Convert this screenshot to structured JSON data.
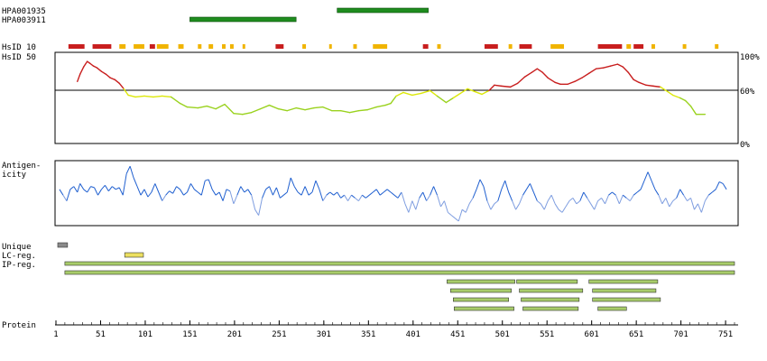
{
  "antibodies": [
    {
      "name": "HPA001935",
      "start": 316,
      "end": 418
    },
    {
      "name": "HPA003911",
      "start": 151,
      "end": 270
    }
  ],
  "rows": {
    "hsid10_label": "HsID 10",
    "hsid50_label": "HsID 50",
    "antigenicity_label_line1": "Antigen-",
    "antigenicity_label_line2": "icity",
    "unique_label": "Unique",
    "lc_label": "LC-reg.",
    "ip_label": "IP-reg.",
    "protein_label": "Protein"
  },
  "colors": {
    "antibody_bar": "#1e8c1e",
    "hsid_high": "#c81e1e",
    "hsid_mid": "#f0b400",
    "hsid_low": "#9ad21e",
    "antigenicity_line": "#2060d0",
    "unique_bar": "#8a8a8a",
    "lc_bar": "#ece060",
    "region_bar": "#a8cc6a"
  },
  "chart_data": {
    "type": "line",
    "x_axis": {
      "range": [
        1,
        761
      ],
      "tick_labels": [
        "1",
        "51",
        "101",
        "151",
        "201",
        "251",
        "301",
        "351",
        "401",
        "451",
        "501",
        "551",
        "601",
        "651",
        "701",
        "751"
      ]
    },
    "hsid10_track": {
      "segments": [
        {
          "start": 15,
          "end": 33,
          "level": "high"
        },
        {
          "start": 42,
          "end": 63,
          "level": "high"
        },
        {
          "start": 72,
          "end": 79,
          "level": "mid"
        },
        {
          "start": 88,
          "end": 100,
          "level": "mid"
        },
        {
          "start": 106,
          "end": 112,
          "level": "high"
        },
        {
          "start": 114,
          "end": 127,
          "level": "mid"
        },
        {
          "start": 138,
          "end": 144,
          "level": "mid"
        },
        {
          "start": 160,
          "end": 164,
          "level": "mid"
        },
        {
          "start": 172,
          "end": 177,
          "level": "mid"
        },
        {
          "start": 187,
          "end": 191,
          "level": "mid"
        },
        {
          "start": 196,
          "end": 200,
          "level": "mid"
        },
        {
          "start": 210,
          "end": 213,
          "level": "mid"
        },
        {
          "start": 247,
          "end": 256,
          "level": "high"
        },
        {
          "start": 277,
          "end": 281,
          "level": "mid"
        },
        {
          "start": 307,
          "end": 310,
          "level": "mid"
        },
        {
          "start": 334,
          "end": 338,
          "level": "mid"
        },
        {
          "start": 356,
          "end": 372,
          "level": "mid"
        },
        {
          "start": 412,
          "end": 418,
          "level": "high"
        },
        {
          "start": 428,
          "end": 432,
          "level": "mid"
        },
        {
          "start": 481,
          "end": 496,
          "level": "high"
        },
        {
          "start": 508,
          "end": 512,
          "level": "mid"
        },
        {
          "start": 520,
          "end": 534,
          "level": "high"
        },
        {
          "start": 555,
          "end": 570,
          "level": "mid"
        },
        {
          "start": 608,
          "end": 635,
          "level": "high"
        },
        {
          "start": 640,
          "end": 645,
          "level": "mid"
        },
        {
          "start": 648,
          "end": 659,
          "level": "high"
        },
        {
          "start": 668,
          "end": 672,
          "level": "mid"
        },
        {
          "start": 703,
          "end": 707,
          "level": "mid"
        },
        {
          "start": 739,
          "end": 743,
          "level": "mid"
        }
      ]
    },
    "hsid50": {
      "y_tick_labels": [
        "100%",
        "60%",
        "0%"
      ],
      "threshold": 60,
      "points": [
        [
          25,
          68
        ],
        [
          28,
          76
        ],
        [
          32,
          84
        ],
        [
          36,
          90
        ],
        [
          39,
          88
        ],
        [
          43,
          85
        ],
        [
          47,
          83
        ],
        [
          52,
          79
        ],
        [
          57,
          76
        ],
        [
          62,
          72
        ],
        [
          67,
          70
        ],
        [
          72,
          66
        ],
        [
          77,
          60
        ],
        [
          82,
          53
        ],
        [
          90,
          51
        ],
        [
          100,
          52
        ],
        [
          110,
          51
        ],
        [
          120,
          52
        ],
        [
          130,
          51
        ],
        [
          140,
          44
        ],
        [
          148,
          40
        ],
        [
          160,
          39
        ],
        [
          170,
          41
        ],
        [
          180,
          38
        ],
        [
          190,
          43
        ],
        [
          200,
          33
        ],
        [
          210,
          32
        ],
        [
          220,
          34
        ],
        [
          230,
          38
        ],
        [
          240,
          42
        ],
        [
          250,
          38
        ],
        [
          260,
          36
        ],
        [
          270,
          39
        ],
        [
          280,
          37
        ],
        [
          290,
          39
        ],
        [
          300,
          40
        ],
        [
          310,
          36
        ],
        [
          320,
          36
        ],
        [
          330,
          34
        ],
        [
          340,
          36
        ],
        [
          350,
          37
        ],
        [
          360,
          40
        ],
        [
          370,
          42
        ],
        [
          376,
          44
        ],
        [
          382,
          52
        ],
        [
          390,
          56
        ],
        [
          400,
          53
        ],
        [
          410,
          55
        ],
        [
          420,
          58
        ],
        [
          428,
          52
        ],
        [
          438,
          45
        ],
        [
          446,
          50
        ],
        [
          454,
          55
        ],
        [
          462,
          60
        ],
        [
          470,
          57
        ],
        [
          478,
          54
        ],
        [
          486,
          58
        ],
        [
          492,
          64
        ],
        [
          500,
          63
        ],
        [
          510,
          62
        ],
        [
          518,
          66
        ],
        [
          526,
          73
        ],
        [
          534,
          78
        ],
        [
          540,
          82
        ],
        [
          546,
          78
        ],
        [
          552,
          72
        ],
        [
          560,
          67
        ],
        [
          566,
          65
        ],
        [
          574,
          65
        ],
        [
          582,
          68
        ],
        [
          590,
          72
        ],
        [
          598,
          77
        ],
        [
          606,
          82
        ],
        [
          614,
          83
        ],
        [
          622,
          85
        ],
        [
          630,
          87
        ],
        [
          636,
          84
        ],
        [
          642,
          78
        ],
        [
          648,
          70
        ],
        [
          654,
          67
        ],
        [
          662,
          64
        ],
        [
          670,
          63
        ],
        [
          678,
          62
        ],
        [
          686,
          57
        ],
        [
          692,
          53
        ],
        [
          700,
          50
        ],
        [
          706,
          47
        ],
        [
          712,
          41
        ],
        [
          718,
          32
        ],
        [
          728,
          32
        ]
      ]
    },
    "antigenicity": {
      "points": [
        [
          5,
          0.55
        ],
        [
          9,
          0.45
        ],
        [
          13,
          0.35
        ],
        [
          17,
          0.55
        ],
        [
          21,
          0.6
        ],
        [
          25,
          0.5
        ],
        [
          28,
          0.65
        ],
        [
          32,
          0.55
        ],
        [
          36,
          0.5
        ],
        [
          40,
          0.6
        ],
        [
          44,
          0.58
        ],
        [
          48,
          0.45
        ],
        [
          52,
          0.55
        ],
        [
          56,
          0.62
        ],
        [
          60,
          0.52
        ],
        [
          64,
          0.6
        ],
        [
          68,
          0.55
        ],
        [
          72,
          0.58
        ],
        [
          76,
          0.45
        ],
        [
          80,
          0.82
        ],
        [
          84,
          0.95
        ],
        [
          88,
          0.75
        ],
        [
          92,
          0.6
        ],
        [
          96,
          0.45
        ],
        [
          100,
          0.55
        ],
        [
          104,
          0.42
        ],
        [
          108,
          0.5
        ],
        [
          112,
          0.65
        ],
        [
          116,
          0.5
        ],
        [
          120,
          0.35
        ],
        [
          124,
          0.45
        ],
        [
          128,
          0.52
        ],
        [
          132,
          0.48
        ],
        [
          136,
          0.6
        ],
        [
          140,
          0.55
        ],
        [
          144,
          0.45
        ],
        [
          148,
          0.5
        ],
        [
          152,
          0.65
        ],
        [
          156,
          0.55
        ],
        [
          160,
          0.5
        ],
        [
          164,
          0.45
        ],
        [
          168,
          0.7
        ],
        [
          172,
          0.72
        ],
        [
          176,
          0.55
        ],
        [
          180,
          0.45
        ],
        [
          184,
          0.5
        ],
        [
          188,
          0.35
        ],
        [
          192,
          0.55
        ],
        [
          196,
          0.52
        ],
        [
          200,
          0.3
        ],
        [
          204,
          0.45
        ],
        [
          208,
          0.6
        ],
        [
          212,
          0.5
        ],
        [
          216,
          0.55
        ],
        [
          220,
          0.45
        ],
        [
          224,
          0.2
        ],
        [
          228,
          0.1
        ],
        [
          232,
          0.4
        ],
        [
          236,
          0.55
        ],
        [
          240,
          0.6
        ],
        [
          244,
          0.45
        ],
        [
          248,
          0.58
        ],
        [
          252,
          0.4
        ],
        [
          256,
          0.45
        ],
        [
          260,
          0.5
        ],
        [
          264,
          0.75
        ],
        [
          268,
          0.6
        ],
        [
          272,
          0.5
        ],
        [
          276,
          0.45
        ],
        [
          280,
          0.6
        ],
        [
          284,
          0.45
        ],
        [
          288,
          0.5
        ],
        [
          292,
          0.7
        ],
        [
          296,
          0.55
        ],
        [
          300,
          0.35
        ],
        [
          304,
          0.45
        ],
        [
          308,
          0.5
        ],
        [
          312,
          0.45
        ],
        [
          316,
          0.5
        ],
        [
          320,
          0.4
        ],
        [
          324,
          0.45
        ],
        [
          328,
          0.35
        ],
        [
          332,
          0.45
        ],
        [
          336,
          0.4
        ],
        [
          340,
          0.35
        ],
        [
          344,
          0.45
        ],
        [
          348,
          0.4
        ],
        [
          352,
          0.45
        ],
        [
          356,
          0.5
        ],
        [
          360,
          0.55
        ],
        [
          364,
          0.45
        ],
        [
          368,
          0.5
        ],
        [
          372,
          0.55
        ],
        [
          376,
          0.5
        ],
        [
          380,
          0.45
        ],
        [
          384,
          0.4
        ],
        [
          388,
          0.5
        ],
        [
          392,
          0.3
        ],
        [
          396,
          0.15
        ],
        [
          400,
          0.35
        ],
        [
          404,
          0.2
        ],
        [
          408,
          0.4
        ],
        [
          412,
          0.5
        ],
        [
          416,
          0.35
        ],
        [
          420,
          0.45
        ],
        [
          424,
          0.6
        ],
        [
          428,
          0.45
        ],
        [
          432,
          0.25
        ],
        [
          436,
          0.35
        ],
        [
          440,
          0.15
        ],
        [
          444,
          0.1
        ],
        [
          448,
          0.05
        ],
        [
          452,
          0.0
        ],
        [
          456,
          0.2
        ],
        [
          460,
          0.15
        ],
        [
          464,
          0.3
        ],
        [
          468,
          0.4
        ],
        [
          472,
          0.55
        ],
        [
          476,
          0.72
        ],
        [
          480,
          0.6
        ],
        [
          484,
          0.35
        ],
        [
          488,
          0.2
        ],
        [
          492,
          0.3
        ],
        [
          496,
          0.35
        ],
        [
          500,
          0.55
        ],
        [
          504,
          0.7
        ],
        [
          508,
          0.5
        ],
        [
          512,
          0.35
        ],
        [
          516,
          0.2
        ],
        [
          520,
          0.3
        ],
        [
          524,
          0.45
        ],
        [
          528,
          0.55
        ],
        [
          532,
          0.65
        ],
        [
          536,
          0.5
        ],
        [
          540,
          0.35
        ],
        [
          544,
          0.3
        ],
        [
          548,
          0.2
        ],
        [
          552,
          0.35
        ],
        [
          556,
          0.45
        ],
        [
          560,
          0.3
        ],
        [
          564,
          0.2
        ],
        [
          568,
          0.15
        ],
        [
          572,
          0.25
        ],
        [
          576,
          0.35
        ],
        [
          580,
          0.4
        ],
        [
          584,
          0.3
        ],
        [
          588,
          0.35
        ],
        [
          592,
          0.5
        ],
        [
          596,
          0.4
        ],
        [
          600,
          0.3
        ],
        [
          604,
          0.2
        ],
        [
          608,
          0.35
        ],
        [
          612,
          0.4
        ],
        [
          616,
          0.3
        ],
        [
          620,
          0.45
        ],
        [
          624,
          0.5
        ],
        [
          628,
          0.45
        ],
        [
          632,
          0.3
        ],
        [
          636,
          0.45
        ],
        [
          640,
          0.4
        ],
        [
          644,
          0.35
        ],
        [
          648,
          0.45
        ],
        [
          652,
          0.5
        ],
        [
          656,
          0.55
        ],
        [
          660,
          0.7
        ],
        [
          664,
          0.85
        ],
        [
          668,
          0.7
        ],
        [
          672,
          0.55
        ],
        [
          676,
          0.45
        ],
        [
          680,
          0.3
        ],
        [
          684,
          0.4
        ],
        [
          688,
          0.25
        ],
        [
          692,
          0.35
        ],
        [
          696,
          0.4
        ],
        [
          700,
          0.55
        ],
        [
          704,
          0.45
        ],
        [
          708,
          0.35
        ],
        [
          712,
          0.4
        ],
        [
          716,
          0.2
        ],
        [
          720,
          0.3
        ],
        [
          724,
          0.15
        ],
        [
          728,
          0.35
        ],
        [
          732,
          0.45
        ],
        [
          736,
          0.5
        ],
        [
          740,
          0.55
        ],
        [
          744,
          0.68
        ],
        [
          748,
          0.65
        ],
        [
          752,
          0.55
        ]
      ]
    },
    "unique_regions": [
      [
        3,
        14
      ]
    ],
    "lc_regions": [
      [
        78,
        99
      ]
    ],
    "ip_regions": [
      [
        [
          11,
          761
        ]
      ],
      [
        [
          11,
          761
        ]
      ],
      [
        [
          439,
          515
        ],
        [
          517,
          585
        ],
        [
          598,
          675
        ]
      ],
      [
        [
          443,
          511
        ],
        [
          520,
          591
        ],
        [
          602,
          673
        ]
      ],
      [
        [
          446,
          508
        ],
        [
          522,
          587
        ],
        [
          602,
          678
        ]
      ],
      [
        [
          447,
          514
        ],
        [
          524,
          586
        ],
        [
          608,
          640
        ]
      ]
    ]
  }
}
